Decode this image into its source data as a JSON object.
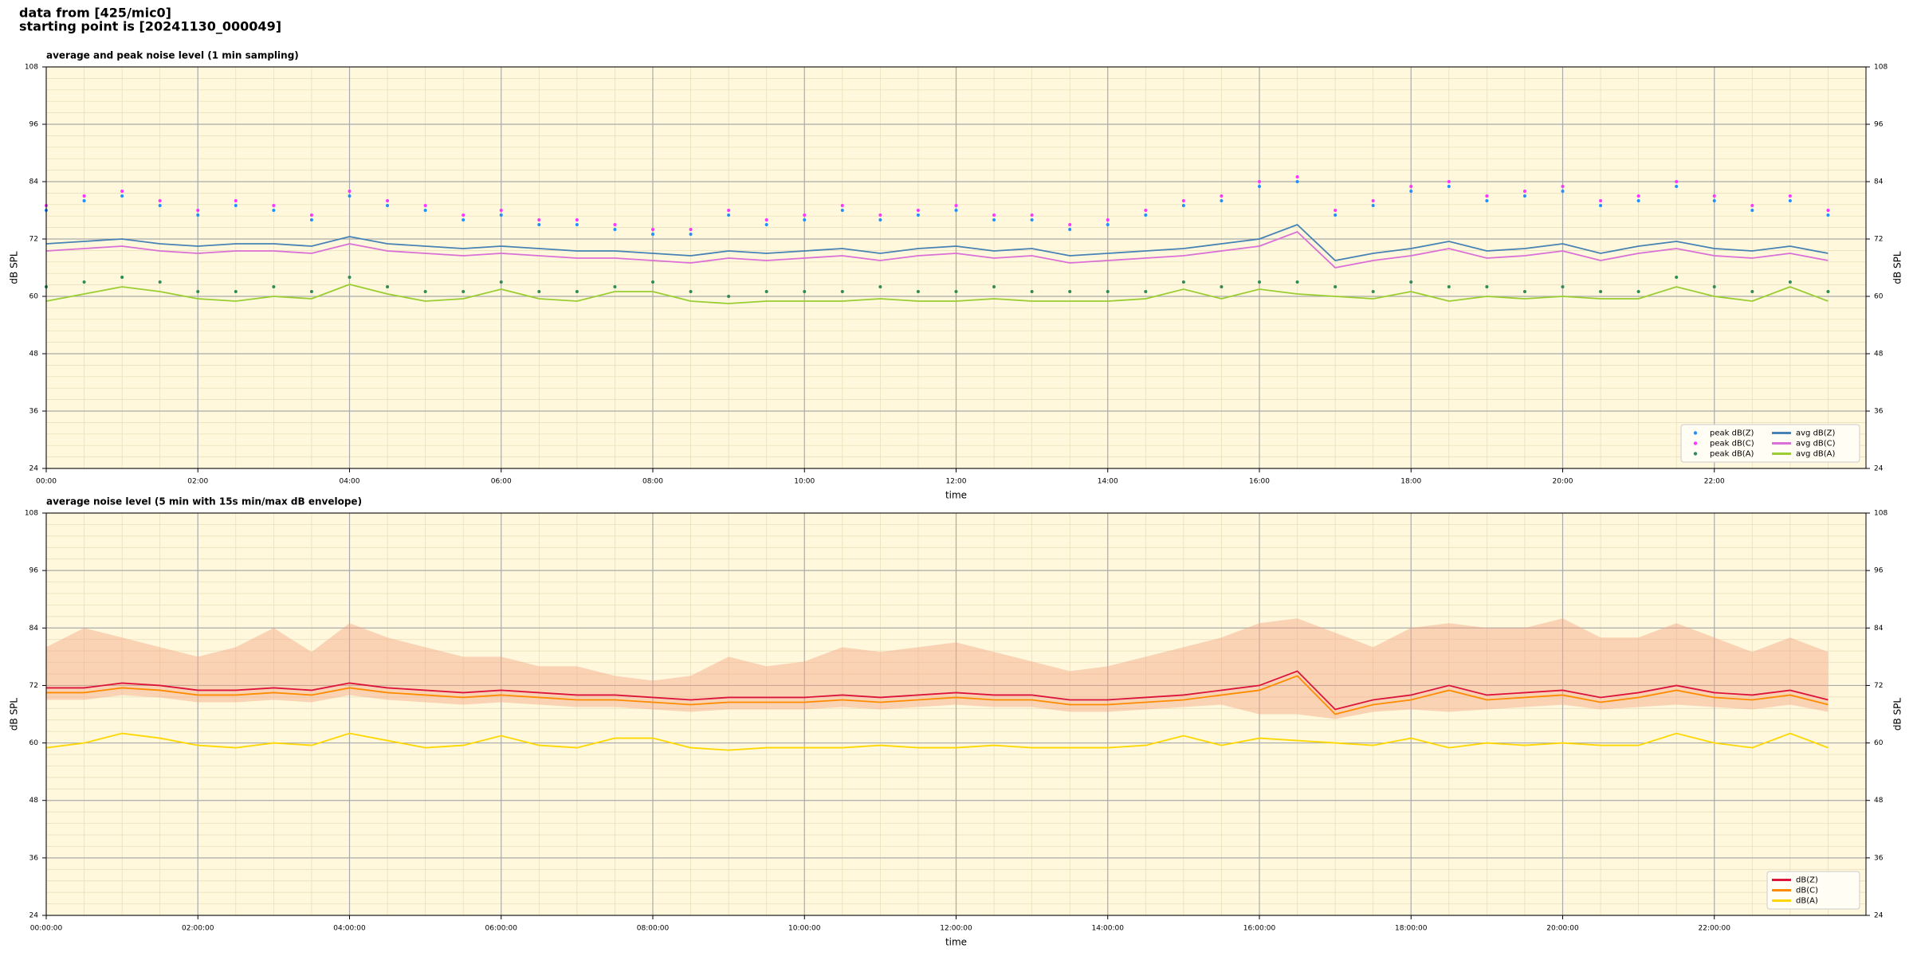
{
  "heading": [
    "data from [425/mic0]",
    "starting point is [20241130_000049]"
  ],
  "chart_data": [
    {
      "type": "line_scatter",
      "title": "average and peak noise level (1 min sampling)",
      "xlabel": "time",
      "ylabel": "dB SPL",
      "x": [
        "00:00",
        "00:30",
        "01:00",
        "01:30",
        "02:00",
        "02:30",
        "03:00",
        "03:30",
        "04:00",
        "04:30",
        "05:00",
        "05:30",
        "06:00",
        "06:30",
        "07:00",
        "07:30",
        "08:00",
        "08:30",
        "09:00",
        "09:30",
        "10:00",
        "10:30",
        "11:00",
        "11:30",
        "12:00",
        "12:30",
        "13:00",
        "13:30",
        "14:00",
        "14:30",
        "15:00",
        "15:30",
        "16:00",
        "16:30",
        "17:00",
        "17:30",
        "18:00",
        "18:30",
        "19:00",
        "19:30",
        "20:00",
        "20:30",
        "21:00",
        "21:30",
        "22:00",
        "22:30",
        "23:00",
        "23:30"
      ],
      "xlim": [
        "00:00",
        "24:00"
      ],
      "xticks": [
        "00:00",
        "02:00",
        "04:00",
        "06:00",
        "08:00",
        "10:00",
        "12:00",
        "14:00",
        "16:00",
        "18:00",
        "20:00",
        "22:00"
      ],
      "ylim": [
        24,
        108
      ],
      "yticks": [
        24,
        36,
        48,
        60,
        72,
        84,
        96,
        108
      ],
      "grid": true,
      "legend": "lower right",
      "legend_columns": 2,
      "series": [
        {
          "name": "peak dB(Z)",
          "kind": "scatter",
          "color": "#1e90ff",
          "values": [
            78,
            80,
            81,
            79,
            77,
            79,
            78,
            76,
            81,
            79,
            78,
            76,
            77,
            75,
            75,
            74,
            73,
            73,
            77,
            75,
            76,
            78,
            76,
            77,
            78,
            76,
            76,
            74,
            75,
            77,
            79,
            80,
            83,
            84,
            77,
            79,
            82,
            83,
            80,
            81,
            82,
            79,
            80,
            83,
            80,
            78,
            80,
            77
          ]
        },
        {
          "name": "peak dB(C)",
          "kind": "scatter",
          "color": "#ff33ff",
          "values": [
            79,
            81,
            82,
            80,
            78,
            80,
            79,
            77,
            82,
            80,
            79,
            77,
            78,
            76,
            76,
            75,
            74,
            74,
            78,
            76,
            77,
            79,
            77,
            78,
            79,
            77,
            77,
            75,
            76,
            78,
            80,
            81,
            84,
            85,
            78,
            80,
            83,
            84,
            81,
            82,
            83,
            80,
            81,
            84,
            81,
            79,
            81,
            78
          ]
        },
        {
          "name": "peak dB(A)",
          "kind": "scatter",
          "color": "#2e8b57",
          "values": [
            62,
            63,
            64,
            63,
            61,
            61,
            62,
            61,
            64,
            62,
            61,
            61,
            63,
            61,
            61,
            62,
            63,
            61,
            60,
            61,
            61,
            61,
            62,
            61,
            61,
            62,
            61,
            61,
            61,
            61,
            63,
            62,
            63,
            63,
            62,
            61,
            63,
            62,
            62,
            61,
            62,
            61,
            61,
            64,
            62,
            61,
            63,
            61
          ]
        },
        {
          "name": "avg dB(Z)",
          "kind": "line",
          "color": "#4682b4",
          "values": [
            71,
            71.5,
            72,
            71,
            70.5,
            71,
            71,
            70.5,
            72.5,
            71,
            70.5,
            70,
            70.5,
            70,
            69.5,
            69.5,
            69,
            68.5,
            69.5,
            69,
            69.5,
            70,
            69,
            70,
            70.5,
            69.5,
            70,
            68.5,
            69,
            69.5,
            70,
            71,
            72,
            75,
            67.5,
            69,
            70,
            71.5,
            69.5,
            70,
            71,
            69,
            70.5,
            71.5,
            70,
            69.5,
            70.5,
            69
          ]
        },
        {
          "name": "avg dB(C)",
          "kind": "line",
          "color": "#da70d6",
          "values": [
            69.5,
            70,
            70.5,
            69.5,
            69,
            69.5,
            69.5,
            69,
            71,
            69.5,
            69,
            68.5,
            69,
            68.5,
            68,
            68,
            67.5,
            67,
            68,
            67.5,
            68,
            68.5,
            67.5,
            68.5,
            69,
            68,
            68.5,
            67,
            67.5,
            68,
            68.5,
            69.5,
            70.5,
            73.5,
            66,
            67.5,
            68.5,
            70,
            68,
            68.5,
            69.5,
            67.5,
            69,
            70,
            68.5,
            68,
            69,
            67.5
          ]
        },
        {
          "name": "avg dB(A)",
          "kind": "line",
          "color": "#9acd32",
          "values": [
            59,
            60.5,
            62,
            61,
            59.5,
            59,
            60,
            59.5,
            62.5,
            60.5,
            59,
            59.5,
            61.5,
            59.5,
            59,
            61,
            61,
            59,
            58.5,
            59,
            59,
            59,
            59.5,
            59,
            59,
            59.5,
            59,
            59,
            59,
            59.5,
            61.5,
            59.5,
            61.5,
            60.5,
            60,
            59.5,
            61,
            59,
            60,
            59.5,
            60,
            59.5,
            59.5,
            62,
            60,
            59,
            62,
            59
          ]
        }
      ]
    },
    {
      "type": "line_envelope",
      "title": "average noise level (5 min with 15s min/max dB envelope)",
      "xlabel": "time",
      "ylabel": "dB SPL",
      "x": [
        "00:00:00",
        "00:30:00",
        "01:00:00",
        "01:30:00",
        "02:00:00",
        "02:30:00",
        "03:00:00",
        "03:30:00",
        "04:00:00",
        "04:30:00",
        "05:00:00",
        "05:30:00",
        "06:00:00",
        "06:30:00",
        "07:00:00",
        "07:30:00",
        "08:00:00",
        "08:30:00",
        "09:00:00",
        "09:30:00",
        "10:00:00",
        "10:30:00",
        "11:00:00",
        "11:30:00",
        "12:00:00",
        "12:30:00",
        "13:00:00",
        "13:30:00",
        "14:00:00",
        "14:30:00",
        "15:00:00",
        "15:30:00",
        "16:00:00",
        "16:30:00",
        "17:00:00",
        "17:30:00",
        "18:00:00",
        "18:30:00",
        "19:00:00",
        "19:30:00",
        "20:00:00",
        "20:30:00",
        "21:00:00",
        "21:30:00",
        "22:00:00",
        "22:30:00",
        "23:00:00",
        "23:30:00"
      ],
      "xlim": [
        "00:00:00",
        "24:00:00"
      ],
      "xticks": [
        "00:00:00",
        "02:00:00",
        "04:00:00",
        "06:00:00",
        "08:00:00",
        "10:00:00",
        "12:00:00",
        "14:00:00",
        "16:00:00",
        "18:00:00",
        "20:00:00",
        "22:00:00"
      ],
      "ylim": [
        24,
        108
      ],
      "yticks": [
        24,
        36,
        48,
        60,
        72,
        84,
        96,
        108
      ],
      "grid": true,
      "legend": "lower right",
      "legend_columns": 1,
      "envelope": {
        "color": "#f4a582",
        "low": [
          69,
          69,
          70,
          69.5,
          68.5,
          68.5,
          69,
          68.5,
          70,
          69,
          68.5,
          68,
          68.5,
          68,
          67.5,
          67.5,
          67,
          66.5,
          67,
          67,
          67,
          67.5,
          67,
          67.5,
          68,
          67.5,
          67.5,
          66.5,
          66.5,
          67,
          67.5,
          68,
          66,
          66,
          65,
          66.5,
          67,
          66.5,
          67,
          67.5,
          68,
          67,
          67.5,
          68,
          67.5,
          67,
          68,
          66.5
        ],
        "high": [
          80,
          84,
          82,
          80,
          78,
          80,
          84,
          79,
          85,
          82,
          80,
          78,
          78,
          76,
          76,
          74,
          73,
          74,
          78,
          76,
          77,
          80,
          79,
          80,
          81,
          79,
          77,
          75,
          76,
          78,
          80,
          82,
          85,
          86,
          83,
          80,
          84,
          85,
          84,
          84,
          86,
          82,
          82,
          85,
          82,
          79,
          82,
          79
        ]
      },
      "series": [
        {
          "name": "dB(Z)",
          "kind": "line",
          "color": "#dc143c",
          "values": [
            71.5,
            71.5,
            72.5,
            72,
            71,
            71,
            71.5,
            71,
            72.5,
            71.5,
            71,
            70.5,
            71,
            70.5,
            70,
            70,
            69.5,
            69,
            69.5,
            69.5,
            69.5,
            70,
            69.5,
            70,
            70.5,
            70,
            70,
            69,
            69,
            69.5,
            70,
            71,
            72,
            75,
            67,
            69,
            70,
            72,
            70,
            70.5,
            71,
            69.5,
            70.5,
            72,
            70.5,
            70,
            71,
            69
          ]
        },
        {
          "name": "dB(C)",
          "kind": "line",
          "color": "#ff8c00",
          "values": [
            70.5,
            70.5,
            71.5,
            71,
            70,
            70,
            70.5,
            70,
            71.5,
            70.5,
            70,
            69.5,
            70,
            69.5,
            69,
            69,
            68.5,
            68,
            68.5,
            68.5,
            68.5,
            69,
            68.5,
            69,
            69.5,
            69,
            69,
            68,
            68,
            68.5,
            69,
            70,
            71,
            74,
            66,
            68,
            69,
            71,
            69,
            69.5,
            70,
            68.5,
            69.5,
            71,
            69.5,
            69,
            70,
            68
          ]
        },
        {
          "name": "dB(A)",
          "kind": "line",
          "color": "#ffd700",
          "values": [
            59,
            60,
            62,
            61,
            59.5,
            59,
            60,
            59.5,
            62,
            60.5,
            59,
            59.5,
            61.5,
            59.5,
            59,
            61,
            61,
            59,
            58.5,
            59,
            59,
            59,
            59.5,
            59,
            59,
            59.5,
            59,
            59,
            59,
            59.5,
            61.5,
            59.5,
            61,
            60.5,
            60,
            59.5,
            61,
            59,
            60,
            59.5,
            60,
            59.5,
            59.5,
            62,
            60,
            59,
            62,
            59
          ]
        }
      ]
    }
  ]
}
